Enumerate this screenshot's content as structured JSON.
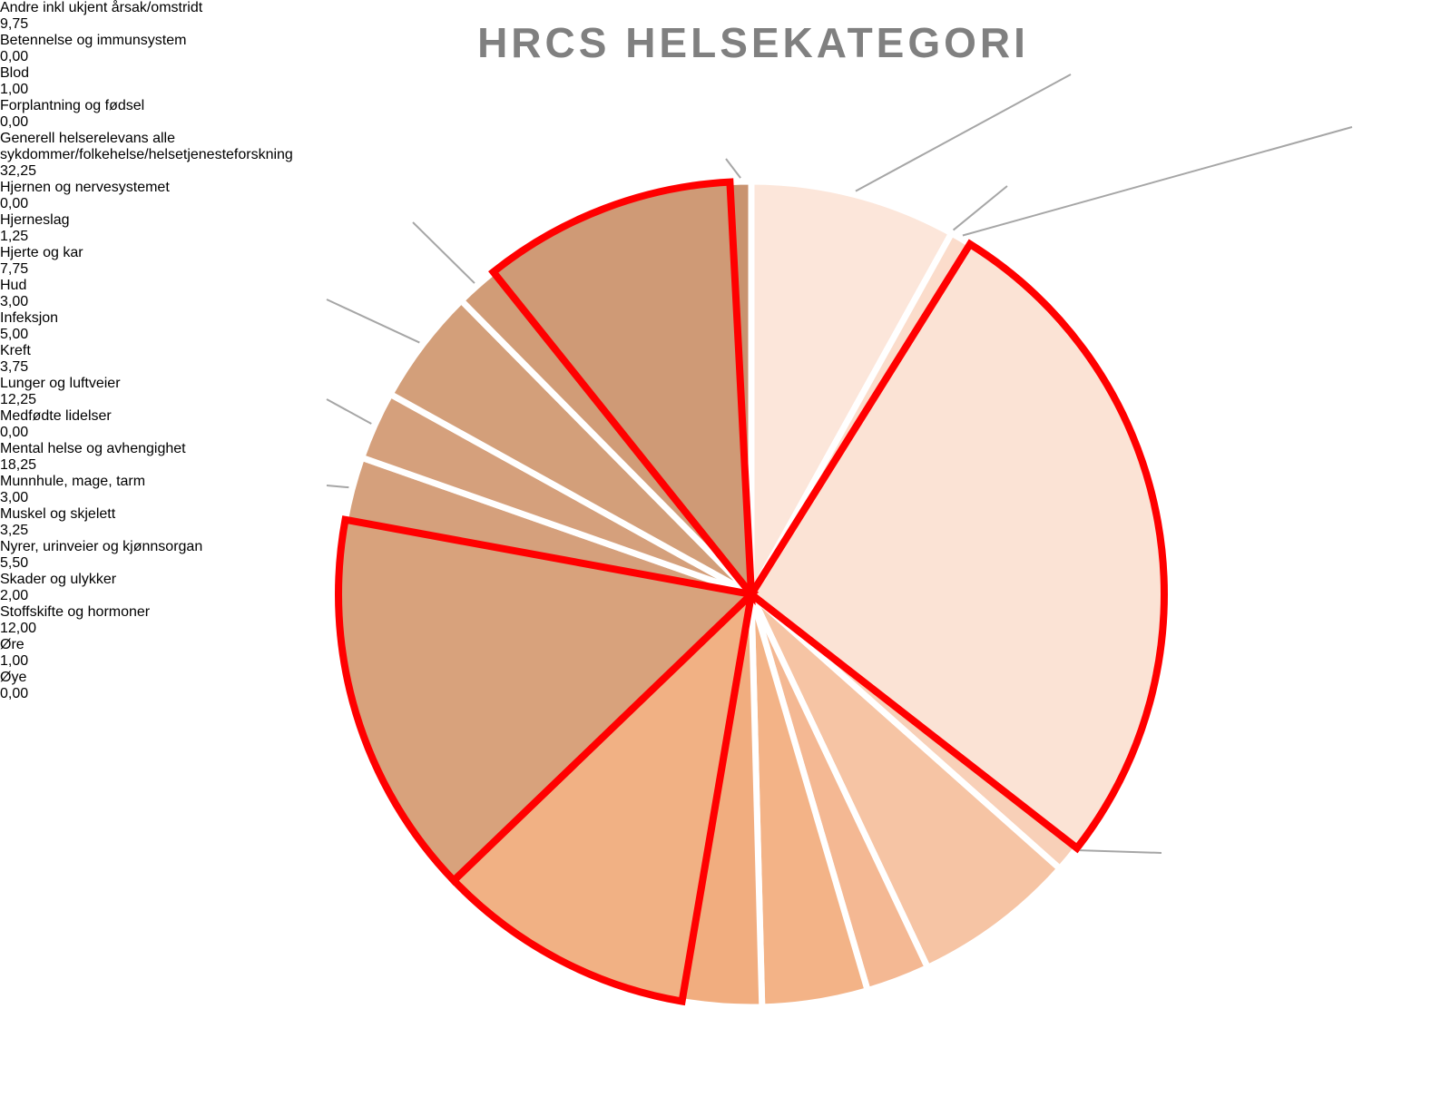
{
  "chart_data": {
    "type": "pie",
    "title": "HRCS HELSEKATEGORI",
    "categories": [
      "Andre inkl ukjent årsak/omstridt",
      "Betennelse og immunsystem",
      "Blod",
      "Forplantning og fødsel",
      "Generell helserelevans alle sykdommer/folkehelse/helsetjenesteforskning",
      "Hjernen og nervesystemet",
      "Hjerneslag",
      "Hjerte og kar",
      "Hud",
      "Infeksjon",
      "Kreft",
      "Lunger og luftveier",
      "Medfødte lidelser",
      "Mental helse og avhengighet",
      "Munnhule, mage, tarm",
      "Muskel og skjelett",
      "Nyrer, urinveier og kjønnsorgan",
      "Skader og ulykker",
      "Stoffskifte og hormoner",
      "Øre",
      "Øye"
    ],
    "values": [
      9.75,
      0,
      1,
      0,
      32.25,
      0,
      1.25,
      7.75,
      3,
      5,
      3.75,
      12.25,
      0,
      18.25,
      3,
      3.25,
      5.5,
      2,
      12,
      1,
      0
    ],
    "value_labels": [
      "9,75",
      "0,00",
      "1,00",
      "0,00",
      "32,25",
      "0,00",
      "1,25",
      "7,75",
      "3,00",
      "5,00",
      "3,75",
      "12,25",
      "0,00",
      "18,25",
      "3,00",
      "3,25",
      "5,50",
      "2,00",
      "12,00",
      "1,00",
      "0,00"
    ],
    "colors": [
      "#fce6da",
      "#fbdccb",
      "#fbdccb",
      "#fbdccb",
      "#fbe3d5",
      "#f8d0b8",
      "#f8d0b8",
      "#f6c4a4",
      "#f4b893",
      "#f3b387",
      "#f1ad7f",
      "#f1b184",
      "#e8a97c",
      "#d8a27c",
      "#d5a07c",
      "#d5a07c",
      "#d39f7a",
      "#d19c77",
      "#cf9a76",
      "#c99370",
      "#c99370"
    ],
    "edgecolors": [
      "#ffffff",
      "#ffffff",
      "#ffffff",
      "#ffffff",
      "#ff0000",
      "#ffffff",
      "#ffffff",
      "#ffffff",
      "#ffffff",
      "#ffffff",
      "#ffffff",
      "#ff0000",
      "#ffffff",
      "#ff0000",
      "#ffffff",
      "#ffffff",
      "#ffffff",
      "#ffffff",
      "#ff0000",
      "#ffffff",
      "#ffffff"
    ]
  }
}
